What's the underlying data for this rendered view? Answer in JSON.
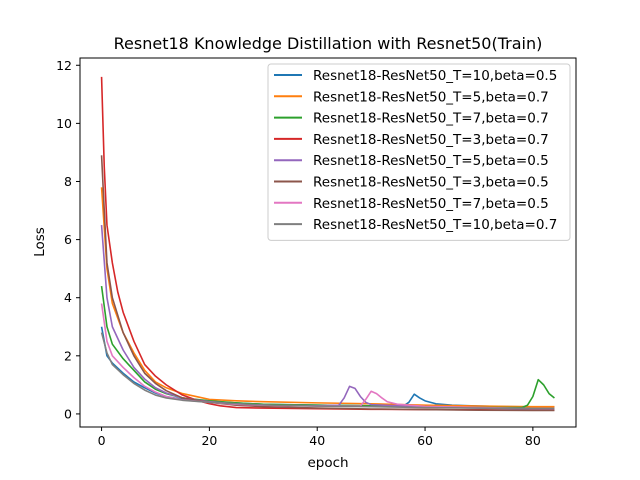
{
  "chart_data": {
    "type": "line",
    "title": "Resnet18 Knowledge Distillation with Resnet50(Train)",
    "xlabel": "epoch",
    "ylabel": "Loss",
    "xlim": [
      -4,
      88
    ],
    "ylim": [
      -0.45,
      12.25
    ],
    "xticks": [
      0,
      20,
      40,
      60,
      80
    ],
    "yticks": [
      0,
      2,
      4,
      6,
      8,
      10,
      12
    ],
    "grid": false,
    "legend_position": "top-right",
    "series": [
      {
        "name": "Resnet18-ResNet50_T=10,beta=0.5",
        "color": "#1f77b4",
        "x": [
          0,
          1,
          2,
          4,
          6,
          8,
          10,
          12,
          15,
          20,
          25,
          30,
          40,
          50,
          56,
          57,
          58,
          59,
          60,
          62,
          65,
          70,
          75,
          80,
          84
        ],
        "y": [
          3.0,
          2.0,
          1.75,
          1.4,
          1.1,
          0.9,
          0.72,
          0.6,
          0.5,
          0.42,
          0.38,
          0.33,
          0.3,
          0.28,
          0.27,
          0.4,
          0.68,
          0.55,
          0.45,
          0.35,
          0.3,
          0.27,
          0.25,
          0.24,
          0.24
        ]
      },
      {
        "name": "Resnet18-ResNet50_T=5,beta=0.7",
        "color": "#ff7f0e",
        "x": [
          0,
          1,
          2,
          4,
          6,
          8,
          10,
          12,
          15,
          18,
          20,
          25,
          30,
          40,
          50,
          60,
          70,
          80,
          84
        ],
        "y": [
          7.8,
          5.0,
          3.8,
          2.8,
          2.1,
          1.5,
          1.1,
          0.9,
          0.7,
          0.58,
          0.5,
          0.45,
          0.42,
          0.38,
          0.35,
          0.3,
          0.27,
          0.25,
          0.25
        ]
      },
      {
        "name": "Resnet18-ResNet50_T=7,beta=0.7",
        "color": "#2ca02c",
        "x": [
          0,
          1,
          2,
          4,
          6,
          8,
          10,
          12,
          15,
          20,
          25,
          30,
          40,
          50,
          60,
          70,
          78,
          79,
          80,
          81,
          82,
          83,
          84
        ],
        "y": [
          4.4,
          3.0,
          2.4,
          1.9,
          1.5,
          1.1,
          0.85,
          0.7,
          0.55,
          0.45,
          0.38,
          0.33,
          0.3,
          0.28,
          0.25,
          0.22,
          0.22,
          0.3,
          0.6,
          1.18,
          1.0,
          0.7,
          0.55
        ]
      },
      {
        "name": "Resnet18-ResNet50_T=3,beta=0.7",
        "color": "#d62728",
        "x": [
          0,
          0.5,
          1,
          2,
          3,
          4,
          6,
          8,
          10,
          12,
          15,
          18,
          20,
          22,
          25,
          30,
          40,
          50,
          60,
          70,
          80,
          84
        ],
        "y": [
          11.6,
          8.5,
          6.5,
          5.2,
          4.2,
          3.5,
          2.5,
          1.7,
          1.3,
          1.0,
          0.65,
          0.45,
          0.35,
          0.28,
          0.22,
          0.2,
          0.18,
          0.16,
          0.15,
          0.14,
          0.13,
          0.13
        ]
      },
      {
        "name": "Resnet18-ResNet50_T=5,beta=0.5",
        "color": "#9467bd",
        "x": [
          0,
          1,
          2,
          4,
          6,
          8,
          10,
          12,
          15,
          20,
          25,
          30,
          40,
          44,
          45,
          46,
          47,
          48,
          49,
          50,
          55,
          60,
          70,
          80,
          84
        ],
        "y": [
          6.5,
          4.0,
          3.0,
          2.2,
          1.6,
          1.2,
          0.9,
          0.72,
          0.55,
          0.42,
          0.35,
          0.3,
          0.28,
          0.3,
          0.55,
          0.95,
          0.88,
          0.6,
          0.4,
          0.32,
          0.28,
          0.24,
          0.2,
          0.17,
          0.17
        ]
      },
      {
        "name": "Resnet18-ResNet50_T=3,beta=0.5",
        "color": "#8c564b",
        "x": [
          0,
          0.5,
          1,
          2,
          4,
          6,
          8,
          10,
          12,
          15,
          20,
          25,
          30,
          40,
          50,
          60,
          70,
          80,
          84
        ],
        "y": [
          8.9,
          7.0,
          5.2,
          4.0,
          2.8,
          2.0,
          1.4,
          1.05,
          0.8,
          0.55,
          0.4,
          0.3,
          0.25,
          0.2,
          0.17,
          0.15,
          0.13,
          0.12,
          0.12
        ]
      },
      {
        "name": "Resnet18-ResNet50_T=7,beta=0.5",
        "color": "#e377c2",
        "x": [
          0,
          1,
          2,
          4,
          6,
          8,
          10,
          12,
          15,
          20,
          25,
          30,
          40,
          48,
          49,
          50,
          51,
          52,
          53,
          55,
          60,
          70,
          80,
          84
        ],
        "y": [
          3.8,
          2.5,
          2.0,
          1.6,
          1.25,
          0.95,
          0.75,
          0.6,
          0.48,
          0.4,
          0.33,
          0.3,
          0.27,
          0.27,
          0.5,
          0.78,
          0.7,
          0.55,
          0.42,
          0.33,
          0.26,
          0.22,
          0.19,
          0.19
        ]
      },
      {
        "name": "Resnet18-ResNet50_T=10,beta=0.7",
        "color": "#7f7f7f",
        "x": [
          0,
          1,
          2,
          4,
          6,
          8,
          10,
          12,
          15,
          20,
          25,
          30,
          40,
          50,
          60,
          70,
          80,
          84
        ],
        "y": [
          2.8,
          2.1,
          1.7,
          1.35,
          1.05,
          0.82,
          0.65,
          0.55,
          0.47,
          0.4,
          0.35,
          0.31,
          0.27,
          0.25,
          0.22,
          0.2,
          0.19,
          0.19
        ]
      }
    ]
  }
}
